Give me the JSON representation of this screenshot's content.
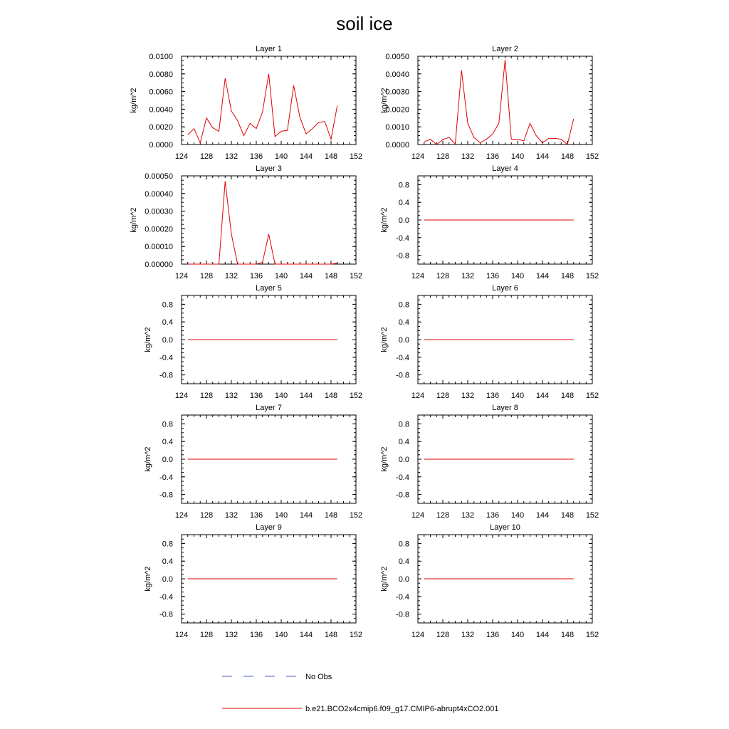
{
  "title": "soil ice",
  "legend": {
    "obs_label": "No Obs",
    "model_label": "b.e21.BCO2x4cmip6.f09_g17.CMIP6-abrupt4xCO2.001",
    "obs_color": "#4a5cc9",
    "model_color": "#e00000"
  },
  "chart_data": [
    {
      "type": "line",
      "title": "Layer 1",
      "ylabel": "kg/m^2",
      "xlim": [
        124,
        152
      ],
      "ylim": [
        0,
        0.01
      ],
      "xticks": [
        "124",
        "128",
        "132",
        "136",
        "140",
        "144",
        "148",
        "152"
      ],
      "yticks": [
        "0.0000",
        "0.0020",
        "0.0040",
        "0.0060",
        "0.0080",
        "0.0100"
      ],
      "series": [
        {
          "color": "#e00000",
          "x": [
            125,
            126,
            127,
            128,
            129,
            130,
            131,
            132,
            133,
            134,
            135,
            136,
            137,
            138,
            139,
            140,
            141,
            142,
            143,
            144,
            145,
            146,
            147,
            148,
            149
          ],
          "y": [
            0.0011,
            0.0018,
            0.0002,
            0.003,
            0.0019,
            0.0015,
            0.0075,
            0.0038,
            0.0027,
            0.001,
            0.0024,
            0.0018,
            0.0037,
            0.008,
            0.0009,
            0.0015,
            0.0016,
            0.0067,
            0.0031,
            0.0012,
            0.0018,
            0.0025,
            0.0026,
            0.0006,
            0.0044
          ]
        }
      ]
    },
    {
      "type": "line",
      "title": "Layer 2",
      "ylabel": "kg/m^2",
      "xlim": [
        124,
        152
      ],
      "ylim": [
        0,
        0.005
      ],
      "xticks": [
        "124",
        "128",
        "132",
        "136",
        "140",
        "144",
        "148",
        "152"
      ],
      "yticks": [
        "0.0000",
        "0.0010",
        "0.0020",
        "0.0030",
        "0.0040",
        "0.0050"
      ],
      "series": [
        {
          "color": "#e00000",
          "x": [
            125,
            126,
            127,
            128,
            129,
            130,
            131,
            132,
            133,
            134,
            135,
            136,
            137,
            138,
            139,
            140,
            141,
            142,
            143,
            144,
            145,
            146,
            147,
            148,
            149
          ],
          "y": [
            0.00015,
            0.0003,
            0.0,
            0.00028,
            0.0004,
            3e-05,
            0.0042,
            0.0012,
            0.0004,
            0.0001,
            0.0003,
            0.0006,
            0.0012,
            0.0048,
            0.0003,
            0.0003,
            0.0002,
            0.0012,
            0.0005,
            0.0001,
            0.00035,
            0.00035,
            0.0003,
            0.0,
            0.00145
          ]
        }
      ]
    },
    {
      "type": "line",
      "title": "Layer 3",
      "ylabel": "kg/m^2",
      "xlim": [
        124,
        152
      ],
      "ylim": [
        0,
        0.0005
      ],
      "xticks": [
        "124",
        "128",
        "132",
        "136",
        "140",
        "144",
        "148",
        "152"
      ],
      "yticks": [
        "0.00000",
        "0.00010",
        "0.00020",
        "0.00030",
        "0.00040",
        "0.00050"
      ],
      "series": [
        {
          "color": "#e00000",
          "x": [
            125,
            126,
            127,
            128,
            129,
            130,
            131,
            132,
            133,
            134,
            135,
            136,
            137,
            138,
            139,
            140,
            141,
            142,
            143,
            144,
            145,
            146,
            147,
            148,
            149
          ],
          "y": [
            0,
            0,
            0,
            0,
            0,
            0,
            0.00047,
            0.00017,
            0,
            0,
            0,
            0,
            1e-05,
            0.00017,
            0,
            0,
            0,
            0,
            0,
            0,
            0,
            0,
            0,
            0,
            5e-06
          ]
        }
      ]
    },
    {
      "type": "line",
      "title": "Layer 4",
      "ylabel": "kg/m^2",
      "xlim": [
        124,
        152
      ],
      "ylim": [
        -1,
        1
      ],
      "xticks": [
        "124",
        "128",
        "132",
        "136",
        "140",
        "144",
        "148",
        "152"
      ],
      "yticks": [
        "-0.8",
        "-0.4",
        "0.0",
        "0.4",
        "0.8"
      ],
      "series": [
        {
          "color": "#e00000",
          "x": [
            125,
            149
          ],
          "y": [
            0,
            0
          ]
        }
      ]
    },
    {
      "type": "line",
      "title": "Layer 5",
      "ylabel": "kg/m^2",
      "xlim": [
        124,
        152
      ],
      "ylim": [
        -1,
        1
      ],
      "xticks": [
        "124",
        "128",
        "132",
        "136",
        "140",
        "144",
        "148",
        "152"
      ],
      "yticks": [
        "-0.8",
        "-0.4",
        "0.0",
        "0.4",
        "0.8"
      ],
      "series": [
        {
          "color": "#e00000",
          "x": [
            125,
            149
          ],
          "y": [
            0,
            0
          ]
        }
      ]
    },
    {
      "type": "line",
      "title": "Layer 6",
      "ylabel": "kg/m^2",
      "xlim": [
        124,
        152
      ],
      "ylim": [
        -1,
        1
      ],
      "xticks": [
        "124",
        "128",
        "132",
        "136",
        "140",
        "144",
        "148",
        "152"
      ],
      "yticks": [
        "-0.8",
        "-0.4",
        "0.0",
        "0.4",
        "0.8"
      ],
      "series": [
        {
          "color": "#e00000",
          "x": [
            125,
            149
          ],
          "y": [
            0,
            0
          ]
        }
      ]
    },
    {
      "type": "line",
      "title": "Layer 7",
      "ylabel": "kg/m^2",
      "xlim": [
        124,
        152
      ],
      "ylim": [
        -1,
        1
      ],
      "xticks": [
        "124",
        "128",
        "132",
        "136",
        "140",
        "144",
        "148",
        "152"
      ],
      "yticks": [
        "-0.8",
        "-0.4",
        "0.0",
        "0.4",
        "0.8"
      ],
      "series": [
        {
          "color": "#e00000",
          "x": [
            125,
            149
          ],
          "y": [
            0,
            0
          ]
        }
      ]
    },
    {
      "type": "line",
      "title": "Layer 8",
      "ylabel": "kg/m^2",
      "xlim": [
        124,
        152
      ],
      "ylim": [
        -1,
        1
      ],
      "xticks": [
        "124",
        "128",
        "132",
        "136",
        "140",
        "144",
        "148",
        "152"
      ],
      "yticks": [
        "-0.8",
        "-0.4",
        "0.0",
        "0.4",
        "0.8"
      ],
      "series": [
        {
          "color": "#e00000",
          "x": [
            125,
            149
          ],
          "y": [
            0,
            0
          ]
        }
      ]
    },
    {
      "type": "line",
      "title": "Layer 9",
      "ylabel": "kg/m^2",
      "xlim": [
        124,
        152
      ],
      "ylim": [
        -1,
        1
      ],
      "xticks": [
        "124",
        "128",
        "132",
        "136",
        "140",
        "144",
        "148",
        "152"
      ],
      "yticks": [
        "-0.8",
        "-0.4",
        "0.0",
        "0.4",
        "0.8"
      ],
      "series": [
        {
          "color": "#e00000",
          "x": [
            125,
            149
          ],
          "y": [
            0,
            0
          ]
        }
      ]
    },
    {
      "type": "line",
      "title": "Layer 10",
      "ylabel": "kg/m^2",
      "xlim": [
        124,
        152
      ],
      "ylim": [
        -1,
        1
      ],
      "xticks": [
        "124",
        "128",
        "132",
        "136",
        "140",
        "144",
        "148",
        "152"
      ],
      "yticks": [
        "-0.8",
        "-0.4",
        "0.0",
        "0.4",
        "0.8"
      ],
      "series": [
        {
          "color": "#e00000",
          "x": [
            125,
            149
          ],
          "y": [
            0,
            0
          ]
        }
      ]
    }
  ]
}
